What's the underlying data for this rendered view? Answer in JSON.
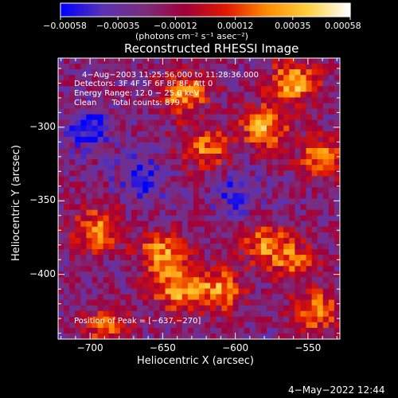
{
  "chart_data": {
    "type": "heatmap",
    "title": "Reconstructed RHESSI Image",
    "xlabel": "Heliocentric X (arcsec)",
    "ylabel": "Heliocentric Y (arcsec)",
    "xlim": [
      -722,
      -528
    ],
    "ylim": [
      -444,
      -253
    ],
    "x_ticks": [
      -700,
      -650,
      -600,
      -550
    ],
    "x_tick_labels": [
      "−700",
      "−650",
      "−600",
      "−550"
    ],
    "y_ticks": [
      -300,
      -350,
      -400
    ],
    "y_tick_labels": [
      "−300",
      "−350",
      "−400"
    ],
    "colorbar": {
      "min": -0.00058,
      "max": 0.00058,
      "tick_values": [
        -0.00058,
        -0.00035,
        -0.00012,
        0.00012,
        0.00035,
        0.00058
      ],
      "tick_labels": [
        "−0.00058",
        "−0.00035",
        "−0.00012",
        "0.00012",
        "0.00035",
        "0.00058"
      ],
      "units": "(photons cm⁻² s⁻¹ asec⁻²)"
    },
    "grid_cols": 50,
    "grid_rows": 50,
    "intensity_regions": [
      {
        "x": -560,
        "y": -270,
        "level": 0.95
      },
      {
        "x": -580,
        "y": -300,
        "level": 0.85
      },
      {
        "x": -635,
        "y": -278,
        "level": 0.8
      },
      {
        "x": -620,
        "y": -315,
        "level": 0.7
      },
      {
        "x": -540,
        "y": -320,
        "level": 0.75
      },
      {
        "x": -695,
        "y": -370,
        "level": 0.8
      },
      {
        "x": -650,
        "y": -385,
        "level": 0.8
      },
      {
        "x": -640,
        "y": -410,
        "level": 0.85
      },
      {
        "x": -610,
        "y": -410,
        "level": 0.8
      },
      {
        "x": -580,
        "y": -380,
        "level": 0.65
      },
      {
        "x": -545,
        "y": -425,
        "level": 0.75
      },
      {
        "x": -560,
        "y": -390,
        "level": 0.6
      },
      {
        "x": -690,
        "y": -435,
        "level": 0.55
      },
      {
        "x": -700,
        "y": -300,
        "level": -0.5
      },
      {
        "x": -665,
        "y": -335,
        "level": -0.45
      },
      {
        "x": -600,
        "y": -345,
        "level": -0.35
      }
    ],
    "annotations": {
      "time": "4−Aug−2003 11:25:56.000 to 11:28:36.000",
      "detectors": "Detectors: 3F 4F 5F 6F 8F 8F, Att 0",
      "energy": "Energy Range: 12.0 − 25.0 keV",
      "clean": "Clean      Total counts: 879.",
      "peak": "Position of Peak = [−637,−270]"
    }
  },
  "footer": {
    "date": "4−May−2022 12:44"
  },
  "colors": {
    "background": "#000000",
    "foreground": "#ffffff",
    "colormap": [
      "#0000ff",
      "#5a32b4",
      "#7b2d7d",
      "#a0003c",
      "#e01800",
      "#ff8c00",
      "#ffd040",
      "#ffffff"
    ]
  }
}
